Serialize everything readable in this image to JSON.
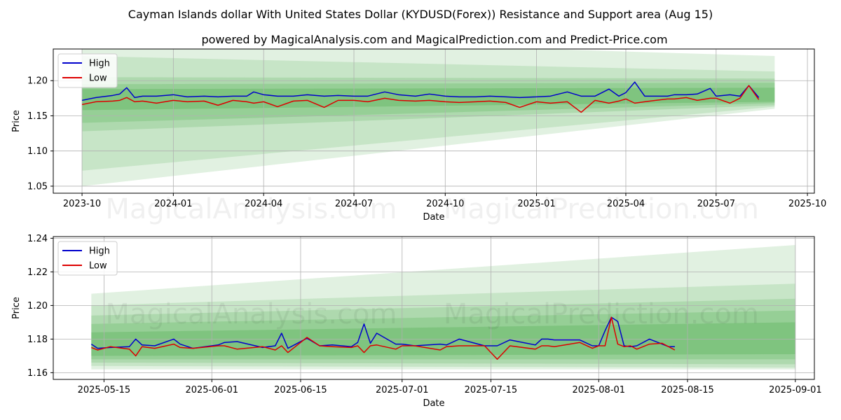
{
  "title": "Cayman Islands dollar With United States Dollar (KYDUSD(Forex)) Resistance and Support area (Aug 15)",
  "subtitle": "powered by MagicalAnalysis.com and MagicalPrediction.com and Predict-Price.com",
  "watermarks": [
    "MagicalAnalysis.com",
    "MagicalPrediction.com"
  ],
  "colors": {
    "high": "#0000cc",
    "low": "#dd0000",
    "band": "#2e9e2e",
    "grid": "#b0b0b0"
  },
  "chart_data": [
    {
      "type": "line",
      "xlabel": "Date",
      "ylabel": "Price",
      "xlim": [
        "2023-09-02",
        "2025-10-08"
      ],
      "ylim": [
        1.04,
        1.245
      ],
      "x_ticks": [
        "2023-10-01",
        "2024-01-01",
        "2024-04-01",
        "2024-07-01",
        "2024-10-01",
        "2025-01-01",
        "2025-04-01",
        "2025-07-01",
        "2025-10-01"
      ],
      "x_tick_labels": [
        "2023-10",
        "2024-01",
        "2024-04",
        "2024-07",
        "2024-10",
        "2025-01",
        "2025-04",
        "2025-07",
        "2025-10"
      ],
      "y_ticks": [
        1.05,
        1.1,
        1.15,
        1.2
      ],
      "y_tick_labels": [
        "1.05",
        "1.10",
        "1.15",
        "1.20"
      ],
      "grid": true,
      "legend": "upper left",
      "band_start": "2023-10-01",
      "band_end": "2025-08-29",
      "bands": [
        {
          "start": [
            1.05,
            1.265
          ],
          "end": [
            1.16,
            1.235
          ],
          "opacity": 0.14
        },
        {
          "start": [
            1.072,
            1.235
          ],
          "end": [
            1.163,
            1.213
          ],
          "opacity": 0.14
        },
        {
          "start": [
            1.128,
            1.205
          ],
          "end": [
            1.165,
            1.203
          ],
          "opacity": 0.16
        },
        {
          "start": [
            1.14,
            1.195
          ],
          "end": [
            1.168,
            1.197
          ],
          "opacity": 0.18
        },
        {
          "start": [
            1.158,
            1.188
          ],
          "end": [
            1.17,
            1.19
          ],
          "opacity": 0.22
        }
      ],
      "series": [
        {
          "name": "High",
          "color": "#0000cc",
          "x": [
            "2023-10-01",
            "2023-10-15",
            "2023-11-01",
            "2023-11-08",
            "2023-11-15",
            "2023-11-23",
            "2023-12-01",
            "2023-12-15",
            "2024-01-01",
            "2024-01-15",
            "2024-02-01",
            "2024-02-15",
            "2024-03-01",
            "2024-03-15",
            "2024-03-22",
            "2024-04-01",
            "2024-04-15",
            "2024-05-01",
            "2024-05-15",
            "2024-06-01",
            "2024-06-15",
            "2024-07-01",
            "2024-07-15",
            "2024-08-01",
            "2024-08-15",
            "2024-09-01",
            "2024-09-15",
            "2024-10-01",
            "2024-10-15",
            "2024-11-01",
            "2024-11-15",
            "2024-12-01",
            "2024-12-15",
            "2025-01-01",
            "2025-01-15",
            "2025-02-01",
            "2025-02-15",
            "2025-03-01",
            "2025-03-15",
            "2025-03-25",
            "2025-04-01",
            "2025-04-10",
            "2025-04-20",
            "2025-05-01",
            "2025-05-13",
            "2025-05-20",
            "2025-06-01",
            "2025-06-12",
            "2025-06-25",
            "2025-07-01",
            "2025-07-15",
            "2025-07-25",
            "2025-08-03",
            "2025-08-13"
          ],
          "values": [
            1.172,
            1.176,
            1.179,
            1.181,
            1.19,
            1.176,
            1.178,
            1.178,
            1.18,
            1.177,
            1.178,
            1.177,
            1.178,
            1.178,
            1.184,
            1.18,
            1.178,
            1.178,
            1.18,
            1.178,
            1.179,
            1.178,
            1.178,
            1.184,
            1.18,
            1.178,
            1.181,
            1.178,
            1.177,
            1.177,
            1.178,
            1.177,
            1.176,
            1.177,
            1.178,
            1.184,
            1.178,
            1.178,
            1.188,
            1.178,
            1.183,
            1.198,
            1.178,
            1.178,
            1.178,
            1.18,
            1.18,
            1.181,
            1.189,
            1.178,
            1.18,
            1.178,
            1.193,
            1.176
          ]
        },
        {
          "name": "Low",
          "color": "#dd0000",
          "x": [
            "2023-10-01",
            "2023-10-15",
            "2023-11-01",
            "2023-11-08",
            "2023-11-15",
            "2023-11-23",
            "2023-12-01",
            "2023-12-15",
            "2024-01-01",
            "2024-01-15",
            "2024-02-01",
            "2024-02-15",
            "2024-03-01",
            "2024-03-15",
            "2024-03-22",
            "2024-04-01",
            "2024-04-15",
            "2024-05-01",
            "2024-05-15",
            "2024-06-01",
            "2024-06-15",
            "2024-07-01",
            "2024-07-15",
            "2024-08-01",
            "2024-08-15",
            "2024-09-01",
            "2024-09-15",
            "2024-10-01",
            "2024-10-15",
            "2024-11-01",
            "2024-11-15",
            "2024-12-01",
            "2024-12-15",
            "2025-01-01",
            "2025-01-15",
            "2025-02-01",
            "2025-02-15",
            "2025-03-01",
            "2025-03-15",
            "2025-03-25",
            "2025-04-01",
            "2025-04-10",
            "2025-04-20",
            "2025-05-01",
            "2025-05-13",
            "2025-05-20",
            "2025-06-01",
            "2025-06-12",
            "2025-06-25",
            "2025-07-01",
            "2025-07-15",
            "2025-07-25",
            "2025-08-03",
            "2025-08-13"
          ],
          "values": [
            1.166,
            1.17,
            1.171,
            1.172,
            1.176,
            1.17,
            1.171,
            1.168,
            1.172,
            1.17,
            1.171,
            1.165,
            1.172,
            1.17,
            1.168,
            1.17,
            1.163,
            1.171,
            1.172,
            1.162,
            1.172,
            1.172,
            1.17,
            1.175,
            1.172,
            1.171,
            1.172,
            1.17,
            1.169,
            1.17,
            1.171,
            1.169,
            1.162,
            1.17,
            1.168,
            1.17,
            1.155,
            1.172,
            1.168,
            1.171,
            1.174,
            1.168,
            1.17,
            1.172,
            1.174,
            1.174,
            1.176,
            1.172,
            1.175,
            1.175,
            1.168,
            1.175,
            1.193,
            1.173
          ]
        }
      ]
    },
    {
      "type": "line",
      "xlabel": "Date",
      "ylabel": "Price",
      "xlim": [
        "2025-05-07",
        "2025-09-04"
      ],
      "ylim": [
        1.156,
        1.241
      ],
      "x_ticks": [
        "2025-05-15",
        "2025-06-01",
        "2025-06-15",
        "2025-07-01",
        "2025-07-15",
        "2025-08-01",
        "2025-08-15",
        "2025-09-01"
      ],
      "x_tick_labels": [
        "2025-05-15",
        "2025-06-01",
        "2025-06-15",
        "2025-07-01",
        "2025-07-15",
        "2025-08-01",
        "2025-08-15",
        "2025-09-01"
      ],
      "y_ticks": [
        1.16,
        1.18,
        1.2,
        1.22,
        1.24
      ],
      "y_tick_labels": [
        "1.16",
        "1.18",
        "1.20",
        "1.22",
        "1.24"
      ],
      "grid": true,
      "legend": "upper left",
      "band_start": "2025-05-13",
      "band_end": "2025-09-01",
      "bands": [
        {
          "start": [
            1.162,
            1.207
          ],
          "end": [
            1.162,
            1.236
          ],
          "opacity": 0.14
        },
        {
          "start": [
            1.164,
            1.2
          ],
          "end": [
            1.163,
            1.213
          ],
          "opacity": 0.14
        },
        {
          "start": [
            1.166,
            1.194
          ],
          "end": [
            1.165,
            1.204
          ],
          "opacity": 0.16
        },
        {
          "start": [
            1.168,
            1.189
          ],
          "end": [
            1.168,
            1.197
          ],
          "opacity": 0.18
        },
        {
          "start": [
            1.17,
            1.184
          ],
          "end": [
            1.171,
            1.19
          ],
          "opacity": 0.22
        }
      ],
      "series": [
        {
          "name": "High",
          "color": "#0000cc",
          "x": [
            "2025-05-13",
            "2025-05-14",
            "2025-05-16",
            "2025-05-19",
            "2025-05-20",
            "2025-05-21",
            "2025-05-23",
            "2025-05-26",
            "2025-05-27",
            "2025-05-29",
            "2025-06-02",
            "2025-06-03",
            "2025-06-05",
            "2025-06-09",
            "2025-06-11",
            "2025-06-12",
            "2025-06-13",
            "2025-06-16",
            "2025-06-18",
            "2025-06-20",
            "2025-06-23",
            "2025-06-24",
            "2025-06-25",
            "2025-06-26",
            "2025-06-27",
            "2025-06-30",
            "2025-07-01",
            "2025-07-03",
            "2025-07-07",
            "2025-07-08",
            "2025-07-10",
            "2025-07-14",
            "2025-07-16",
            "2025-07-18",
            "2025-07-22",
            "2025-07-23",
            "2025-07-24",
            "2025-07-25",
            "2025-07-29",
            "2025-07-31",
            "2025-08-01",
            "2025-08-02",
            "2025-08-03",
            "2025-08-04",
            "2025-08-05",
            "2025-08-06",
            "2025-08-07",
            "2025-08-09",
            "2025-08-11",
            "2025-08-12",
            "2025-08-13"
          ],
          "values": [
            1.177,
            1.1745,
            1.175,
            1.1755,
            1.18,
            1.1765,
            1.176,
            1.18,
            1.177,
            1.1745,
            1.1765,
            1.178,
            1.1785,
            1.175,
            1.176,
            1.1835,
            1.1745,
            1.1805,
            1.176,
            1.1765,
            1.1755,
            1.178,
            1.189,
            1.1775,
            1.1835,
            1.177,
            1.177,
            1.176,
            1.177,
            1.1765,
            1.18,
            1.176,
            1.176,
            1.1795,
            1.1765,
            1.18,
            1.18,
            1.1795,
            1.1795,
            1.176,
            1.176,
            1.185,
            1.193,
            1.1905,
            1.176,
            1.1755,
            1.176,
            1.18,
            1.177,
            1.1755,
            1.1755
          ]
        },
        {
          "name": "Low",
          "color": "#dd0000",
          "x": [
            "2025-05-13",
            "2025-05-14",
            "2025-05-16",
            "2025-05-19",
            "2025-05-20",
            "2025-05-21",
            "2025-05-23",
            "2025-05-26",
            "2025-05-27",
            "2025-05-29",
            "2025-06-02",
            "2025-06-03",
            "2025-06-05",
            "2025-06-09",
            "2025-06-11",
            "2025-06-12",
            "2025-06-13",
            "2025-06-16",
            "2025-06-18",
            "2025-06-20",
            "2025-06-23",
            "2025-06-24",
            "2025-06-25",
            "2025-06-26",
            "2025-06-27",
            "2025-06-30",
            "2025-07-01",
            "2025-07-03",
            "2025-07-07",
            "2025-07-08",
            "2025-07-10",
            "2025-07-14",
            "2025-07-16",
            "2025-07-18",
            "2025-07-22",
            "2025-07-23",
            "2025-07-24",
            "2025-07-25",
            "2025-07-29",
            "2025-07-31",
            "2025-08-01",
            "2025-08-02",
            "2025-08-03",
            "2025-08-04",
            "2025-08-05",
            "2025-08-06",
            "2025-08-07",
            "2025-08-09",
            "2025-08-11",
            "2025-08-12",
            "2025-08-13"
          ],
          "values": [
            1.175,
            1.1735,
            1.1755,
            1.174,
            1.17,
            1.1755,
            1.1745,
            1.177,
            1.175,
            1.1745,
            1.176,
            1.176,
            1.174,
            1.1755,
            1.1735,
            1.176,
            1.172,
            1.181,
            1.176,
            1.1755,
            1.175,
            1.176,
            1.172,
            1.176,
            1.1765,
            1.174,
            1.176,
            1.176,
            1.1735,
            1.1755,
            1.176,
            1.176,
            1.168,
            1.176,
            1.174,
            1.176,
            1.176,
            1.1755,
            1.178,
            1.1745,
            1.176,
            1.176,
            1.193,
            1.177,
            1.1755,
            1.176,
            1.174,
            1.177,
            1.1775,
            1.1755,
            1.1735
          ]
        }
      ]
    }
  ]
}
